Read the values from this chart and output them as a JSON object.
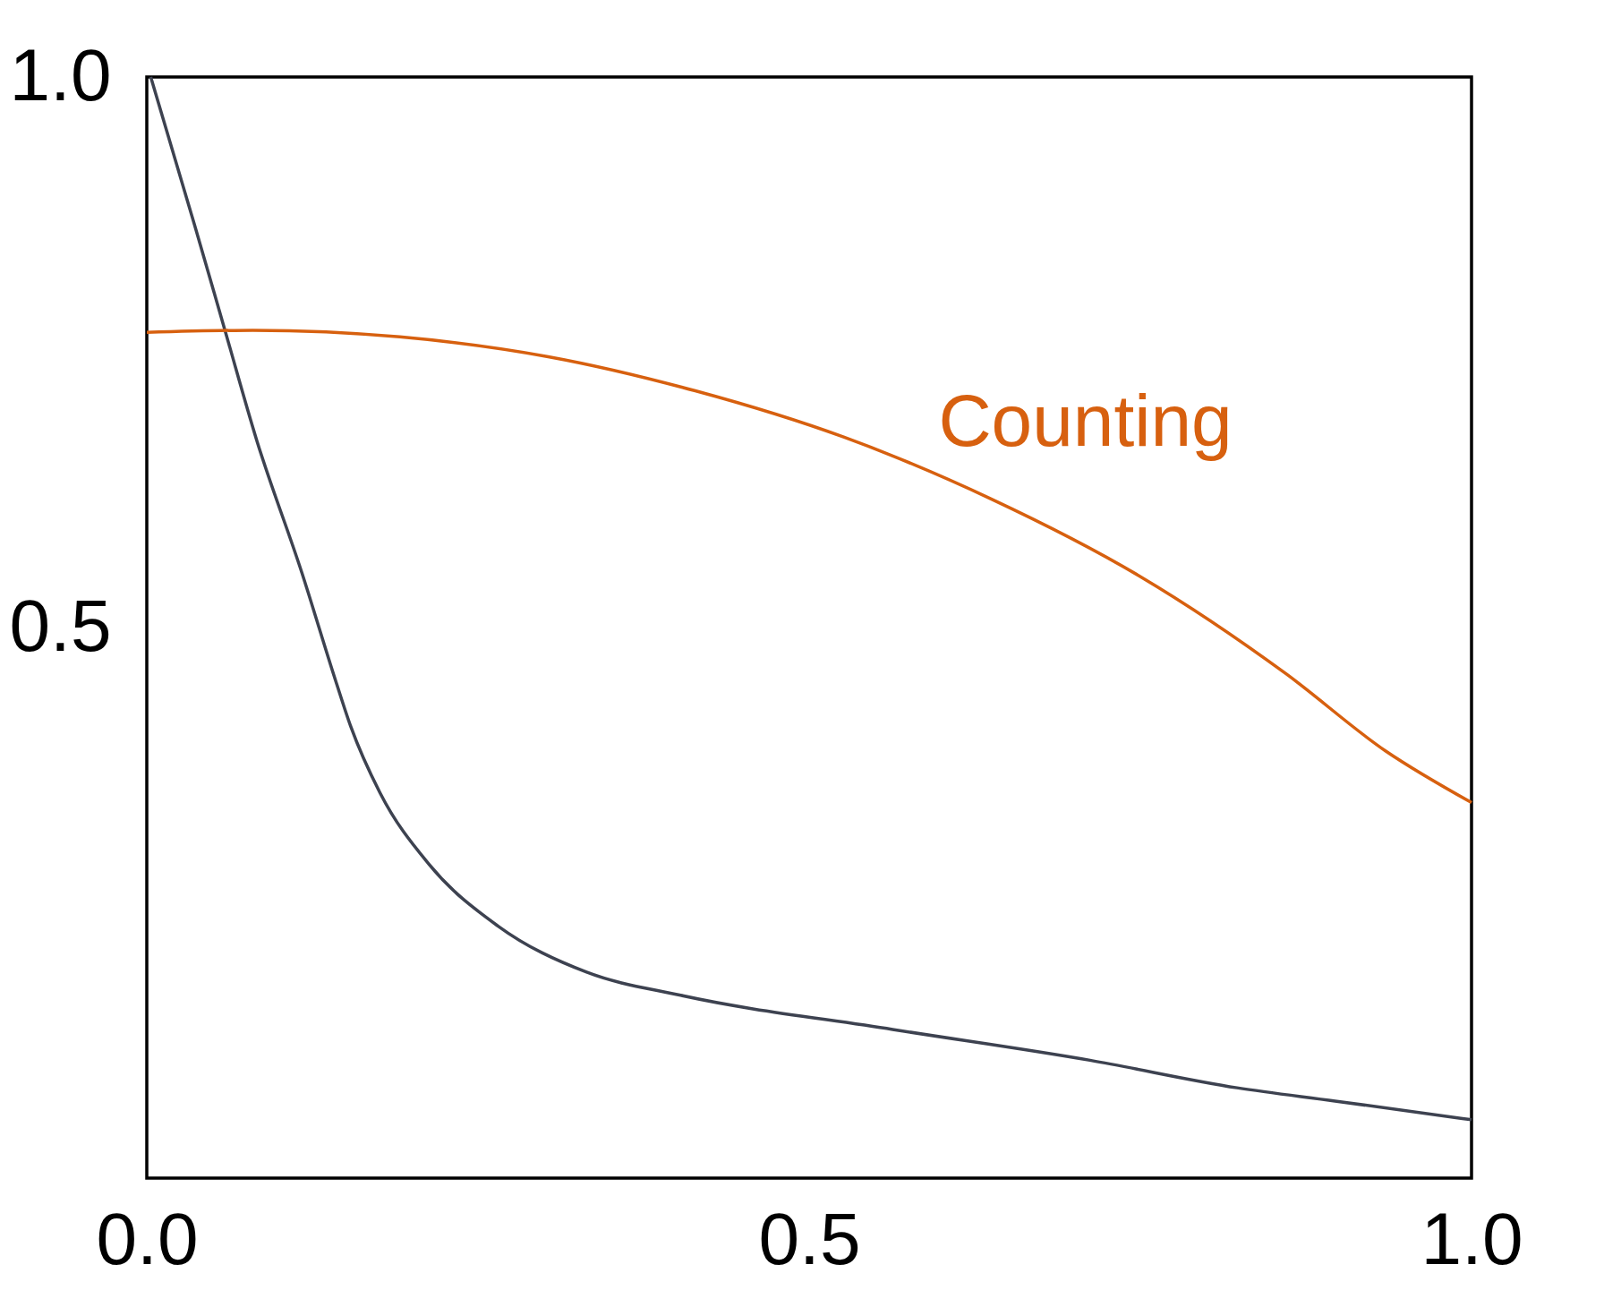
{
  "chart_data": {
    "type": "line",
    "xlim": [
      0,
      1.0
    ],
    "ylim": [
      0,
      1.0
    ],
    "xticks": [
      {
        "value": 0,
        "label": "0.0"
      },
      0.5,
      {
        "value": 1,
        "label": "1.0"
      }
    ],
    "yticks": [
      0.5,
      {
        "value": 1,
        "label": "1.0"
      }
    ],
    "grid": false,
    "marker": "none",
    "line_style": "solid",
    "series": [
      {
        "color": "#3d4250",
        "x": [
          0.003,
          0.035,
          0.059,
          0.083,
          0.117,
          0.143,
          0.154,
          0.176,
          0.213,
          0.265,
          0.332,
          0.403,
          0.563,
          0.712,
          0.823,
          0.897,
          1.0
        ],
        "values": [
          1.0,
          0.87,
          0.77,
          0.67,
          0.55,
          0.45,
          0.41,
          0.35,
          0.285,
          0.229,
          0.187,
          0.166,
          0.135,
          0.107,
          0.082,
          0.07,
          0.053
        ]
      },
      {
        "name": "Counting",
        "color": "#d7600f",
        "x": [
          0,
          0.08,
          0.191,
          0.303,
          0.414,
          0.526,
          0.637,
          0.749,
          0.86,
          0.935,
          1.0
        ],
        "values": [
          0.768,
          0.77,
          0.764,
          0.746,
          0.715,
          0.673,
          0.617,
          0.547,
          0.458,
          0.388,
          0.341
        ]
      }
    ]
  }
}
